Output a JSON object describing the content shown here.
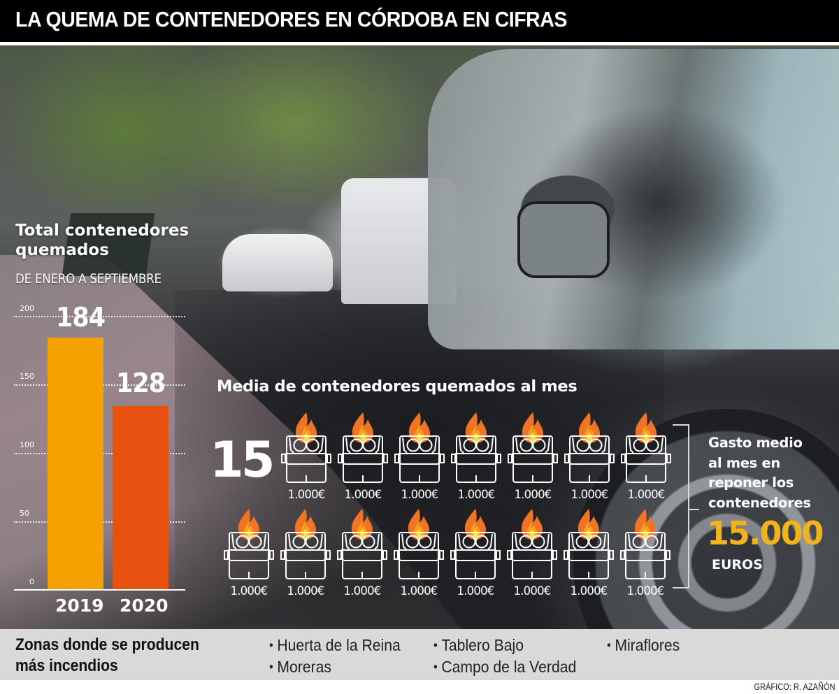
{
  "header": {
    "title": "LA QUEMA DE CONTENEDORES EN CÓRDOBA EN CIFRAS"
  },
  "chart": {
    "title_line1": "Total contenedores",
    "title_line2": "quemados",
    "subtitle": "DE ENERO A SEPTIEMBRE",
    "ticks": [
      "200",
      "150",
      "100",
      "50",
      "0"
    ],
    "bars": [
      {
        "year": "2019",
        "value": "184",
        "color": "#f5a100"
      },
      {
        "year": "2020",
        "value": "128",
        "color": "#e8510e"
      }
    ]
  },
  "chart_data": {
    "type": "bar",
    "title": "Total contenedores quemados",
    "subtitle": "DE ENERO A SEPTIEMBRE",
    "categories": [
      "2019",
      "2020"
    ],
    "values": [
      184,
      128
    ],
    "xlabel": "",
    "ylabel": "",
    "ylim": [
      0,
      200
    ],
    "yticks": [
      0,
      50,
      100,
      150,
      200
    ],
    "grid": true,
    "colors": [
      "#f5a100",
      "#e8510e"
    ]
  },
  "media": {
    "title": "Media de contenedores quemados al mes",
    "value": "15",
    "icon": "burning-container-icon",
    "unit_cost_label": "1.000€",
    "row1_count": 7,
    "row2_count": 8
  },
  "gasto": {
    "label_line1": "Gasto medio",
    "label_line2": "al mes en",
    "label_line3": "reponer los",
    "label_line4": "contenedores",
    "value": "15.000",
    "unit": "EUROS",
    "value_color": "#f5b31b"
  },
  "zones": {
    "title_line1": "Zonas donde se producen",
    "title_line2": "más incendios",
    "bullet": "•",
    "items": [
      "Huerta de la Reina",
      "Tablero Bajo",
      "Miraflores",
      "Moreras",
      "Campo de la Verdad"
    ]
  },
  "credit": "GRÁFICO: R. AZAÑÓN"
}
